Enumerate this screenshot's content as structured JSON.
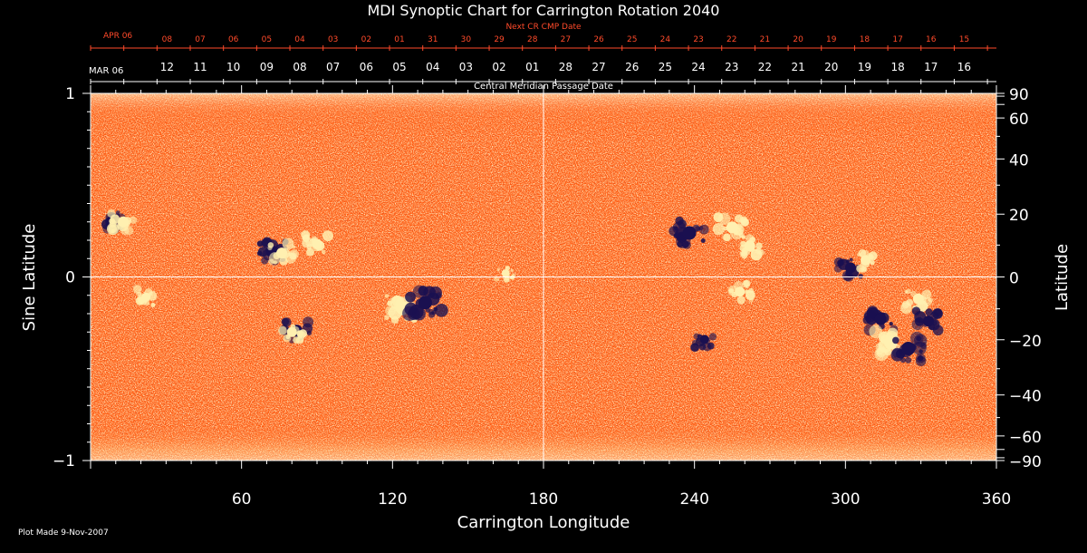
{
  "chart_data": {
    "type": "heatmap",
    "title": "MDI Synoptic Chart for Carrington Rotation 2040",
    "next_cr_label": "Next CR CMP Date",
    "cmp_label": "Central Meridian Passage Date",
    "xlabel": "Carrington Longitude",
    "ylabel_left": "Sine Latitude",
    "ylabel_right": "Latitude",
    "xlim": [
      0,
      360
    ],
    "ylim": [
      -1,
      1
    ],
    "x_ticks": [
      "60",
      "120",
      "180",
      "240",
      "300",
      "360"
    ],
    "left_ticks": [
      "1",
      "0",
      "−1"
    ],
    "right_ticks": [
      "90",
      "60",
      "40",
      "20",
      "0",
      "−20",
      "−40",
      "−60",
      "−90"
    ],
    "cmp_month_label": "MAR 06",
    "cmp_dates": [
      "12",
      "11",
      "10",
      "09",
      "08",
      "07",
      "06",
      "05",
      "04",
      "03",
      "02",
      "01",
      "28",
      "27",
      "26",
      "25",
      "24",
      "23",
      "22",
      "21",
      "20",
      "19",
      "18",
      "17",
      "16"
    ],
    "next_month_label": "APR 06",
    "next_dates": [
      "08",
      "07",
      "06",
      "05",
      "04",
      "03",
      "02",
      "01",
      "31",
      "30",
      "29",
      "28",
      "27",
      "26",
      "25",
      "24",
      "23",
      "22",
      "21",
      "20",
      "19",
      "18",
      "17",
      "16",
      "15"
    ],
    "colormap": {
      "background": "#ff5a10",
      "positive": "#fff0b0",
      "negative": "#1a1050"
    },
    "features": [
      {
        "lon": 8,
        "sinlat": 0.3,
        "polarity": "negative",
        "strength": 0.6
      },
      {
        "lon": 13,
        "sinlat": 0.3,
        "polarity": "positive",
        "strength": 0.6
      },
      {
        "lon": 72,
        "sinlat": 0.14,
        "polarity": "negative",
        "strength": 0.7
      },
      {
        "lon": 76,
        "sinlat": 0.13,
        "polarity": "positive",
        "strength": 0.6
      },
      {
        "lon": 90,
        "sinlat": 0.18,
        "polarity": "positive",
        "strength": 0.5
      },
      {
        "lon": 124,
        "sinlat": -0.17,
        "polarity": "positive",
        "strength": 0.9
      },
      {
        "lon": 133,
        "sinlat": -0.14,
        "polarity": "negative",
        "strength": 0.9
      },
      {
        "lon": 82,
        "sinlat": -0.29,
        "polarity": "negative",
        "strength": 0.6
      },
      {
        "lon": 80,
        "sinlat": -0.3,
        "polarity": "positive",
        "strength": 0.5
      },
      {
        "lon": 22,
        "sinlat": -0.11,
        "polarity": "positive",
        "strength": 0.4
      },
      {
        "lon": 238,
        "sinlat": 0.24,
        "polarity": "negative",
        "strength": 0.9
      },
      {
        "lon": 255,
        "sinlat": 0.27,
        "polarity": "positive",
        "strength": 0.7
      },
      {
        "lon": 262,
        "sinlat": 0.17,
        "polarity": "positive",
        "strength": 0.6
      },
      {
        "lon": 302,
        "sinlat": 0.05,
        "polarity": "negative",
        "strength": 0.6
      },
      {
        "lon": 308,
        "sinlat": 0.09,
        "polarity": "positive",
        "strength": 0.5
      },
      {
        "lon": 314,
        "sinlat": -0.23,
        "polarity": "negative",
        "strength": 0.7
      },
      {
        "lon": 318,
        "sinlat": -0.36,
        "polarity": "positive",
        "strength": 0.8
      },
      {
        "lon": 325,
        "sinlat": -0.39,
        "polarity": "negative",
        "strength": 0.9
      },
      {
        "lon": 329,
        "sinlat": -0.12,
        "polarity": "positive",
        "strength": 0.6
      },
      {
        "lon": 333,
        "sinlat": -0.24,
        "polarity": "negative",
        "strength": 0.6
      },
      {
        "lon": 258,
        "sinlat": -0.08,
        "polarity": "positive",
        "strength": 0.5
      },
      {
        "lon": 244,
        "sinlat": -0.34,
        "polarity": "negative",
        "strength": 0.4
      },
      {
        "lon": 165,
        "sinlat": 0.02,
        "polarity": "positive",
        "strength": 0.3
      }
    ]
  },
  "footer": {
    "plot_made": "Plot Made  9-Nov-2007"
  }
}
